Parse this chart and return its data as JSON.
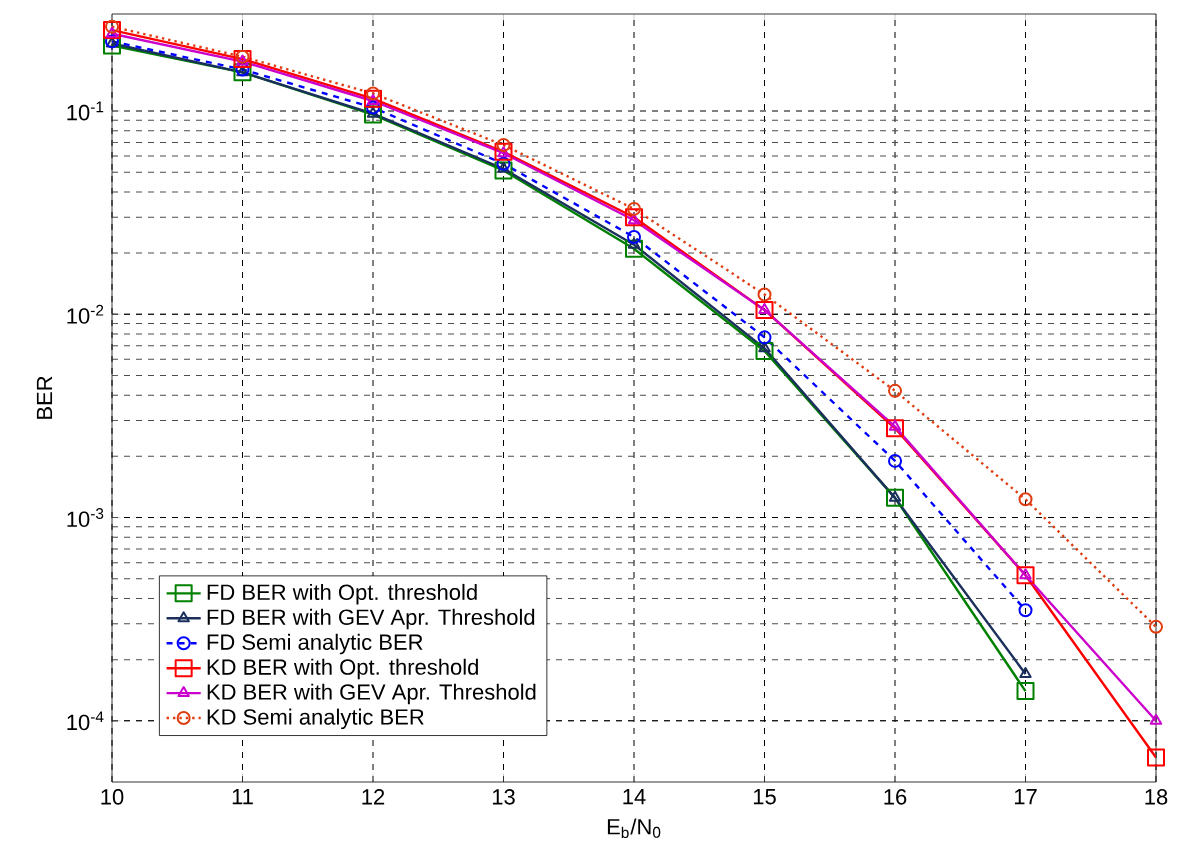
{
  "chart_data": {
    "type": "line",
    "xlabel": "E$_{b}$/N$_{0}$",
    "ylabel": "BER",
    "log": "y",
    "grid": true,
    "legend": "bottom left",
    "x": [
      10,
      11,
      12,
      13,
      14,
      15,
      16,
      17,
      18
    ],
    "xlim": [
      10,
      18
    ],
    "xticks": [
      10,
      11,
      12,
      13,
      14,
      15,
      16,
      17,
      18
    ],
    "ylim": [
      5e-05,
      0.3
    ],
    "yticks": [
      {
        "value": 0.0001,
        "label": "10$^{-4}$"
      },
      {
        "value": 0.001,
        "label": "10$^{-3}$"
      },
      {
        "value": 0.01,
        "label": "10$^{-2}$"
      },
      {
        "value": 0.1,
        "label": "10$^{-1}$"
      }
    ],
    "series": [
      {
        "name": "FD BER with Opt. threshold",
        "color": "#008000",
        "marker": "square",
        "line_style": "solid",
        "values": [
          0.21,
          0.155,
          0.096,
          0.051,
          0.021,
          0.0066,
          0.00125,
          0.00014,
          null
        ]
      },
      {
        "name": "FD BER with GEV Apr. Threshold",
        "color": "#1a2f5c",
        "marker": "triangle",
        "line_style": "solid",
        "values": [
          0.215,
          0.155,
          0.097,
          0.052,
          0.022,
          0.0068,
          0.00125,
          0.00017,
          null
        ]
      },
      {
        "name": "FD Semi analytic BER",
        "color": "#0000ff",
        "marker": "circle",
        "line_style": "dashed",
        "values": [
          0.22,
          0.16,
          0.104,
          0.055,
          0.024,
          0.0077,
          0.0019,
          0.00035,
          null
        ]
      },
      {
        "name": "KD BER with Opt. threshold",
        "color": "#ff0000",
        "marker": "square",
        "line_style": "solid",
        "values": [
          0.25,
          0.18,
          0.115,
          0.063,
          0.03,
          0.0105,
          0.00275,
          0.00052,
          6.6e-05
        ]
      },
      {
        "name": "KD BER with GEV Apr. Threshold",
        "color": "#cc00cc",
        "marker": "triangle",
        "line_style": "solid",
        "values": [
          0.24,
          0.175,
          0.112,
          0.062,
          0.029,
          0.0105,
          0.0028,
          0.00052,
          0.0001
        ]
      },
      {
        "name": "KD Semi analytic BER",
        "color": "#e03c10",
        "marker": "circle",
        "line_style": "dotted",
        "values": [
          0.26,
          0.185,
          0.122,
          0.068,
          0.033,
          0.0125,
          0.0042,
          0.00123,
          0.00029
        ]
      }
    ]
  }
}
